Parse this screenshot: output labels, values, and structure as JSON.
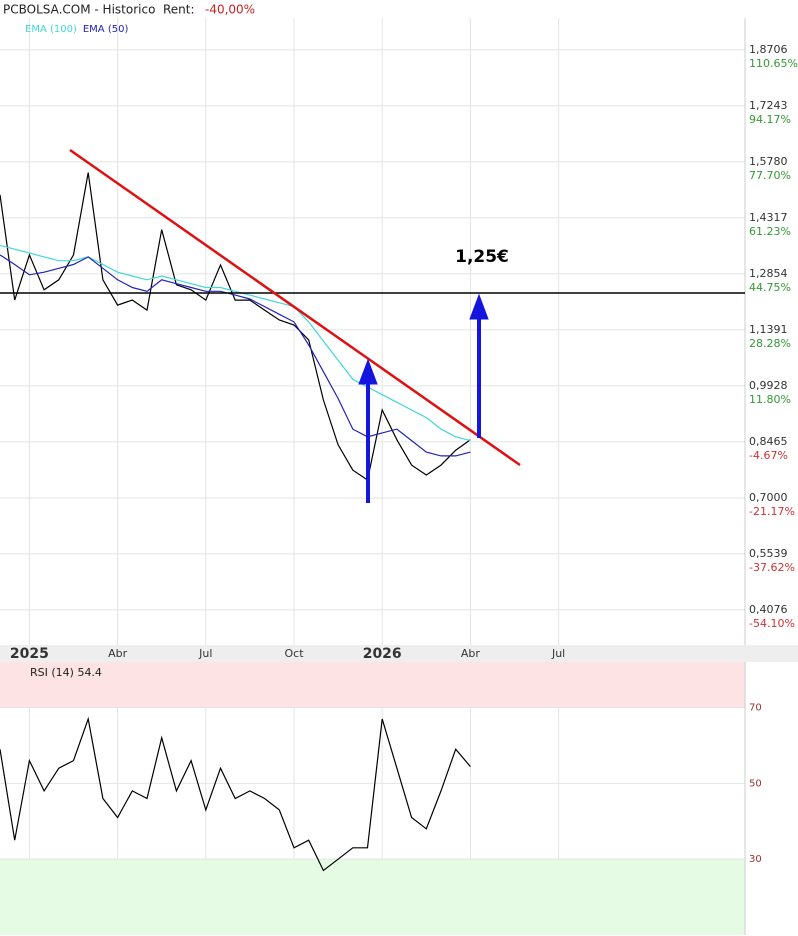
{
  "chart_data": [
    {
      "type": "line",
      "title": "PCBOLSA.COM - Historico",
      "rent_label": "Rent:",
      "rent_value": "-40,00%",
      "annotation": "1,25€",
      "categories": [
        null,
        null,
        "2025",
        null,
        null,
        null,
        null,
        null,
        "Abr",
        null,
        null,
        null,
        null,
        null,
        "Jul",
        null,
        null,
        null,
        null,
        null,
        "Oct",
        null,
        null,
        null,
        null,
        null,
        "2026",
        null,
        null,
        null,
        null,
        null,
        "Abr",
        null,
        null,
        null,
        null,
        null,
        "Jul",
        null,
        null,
        null,
        null,
        null,
        null,
        null,
        null,
        null,
        null,
        null,
        null
      ],
      "ylim": [
        0.316,
        1.954
      ],
      "yticks": [
        {
          "value": 1.8706,
          "label": "1,8706"
        },
        {
          "value": 1.7243,
          "label": "1,7243"
        },
        {
          "value": 1.578,
          "label": "1,5780"
        },
        {
          "value": 1.4317,
          "label": "1,4317"
        },
        {
          "value": 1.2854,
          "label": "1,2854"
        },
        {
          "value": 1.1391,
          "label": "1,1391"
        },
        {
          "value": 0.9928,
          "label": "0,9928"
        },
        {
          "value": 0.8465,
          "label": "0,8465"
        },
        {
          "value": 0.7,
          "label": "0,7000"
        },
        {
          "value": 0.5539,
          "label": "0,5539"
        },
        {
          "value": 0.4076,
          "label": "0,4076"
        }
      ],
      "ytick_pct_labels": [
        "110.65%",
        "94.17%",
        "77.70%",
        "61.23%",
        "44.75%",
        "28.28%",
        "11.80%",
        "-4.67%",
        "-21.17%",
        "-37.62%",
        "-54.10%"
      ],
      "grid": true,
      "series": [
        {
          "color": "#000000",
          "values": [
            1.492,
            1.217,
            1.335,
            1.244,
            1.27,
            1.335,
            1.55,
            1.27,
            1.204,
            1.217,
            1.191,
            1.401,
            1.257,
            1.244,
            1.217,
            1.309,
            1.217,
            1.217,
            1.191,
            1.165,
            1.152,
            1.113,
            0.956,
            0.839,
            0.773,
            0.747,
            0.93,
            0.852,
            0.786,
            0.76,
            0.786,
            0.825,
            0.852,
            null,
            null,
            null,
            null,
            null,
            null,
            null,
            null,
            null,
            null,
            null,
            null,
            null,
            null,
            null,
            null,
            null,
            null
          ]
        },
        {
          "name": "EMA (100)",
          "color": "#3fd8d8",
          "values": [
            1.36,
            1.35,
            1.34,
            1.33,
            1.32,
            1.32,
            1.33,
            1.31,
            1.29,
            1.28,
            1.27,
            1.28,
            1.27,
            1.26,
            1.25,
            1.25,
            1.24,
            1.23,
            1.22,
            1.21,
            1.2,
            1.16,
            1.11,
            1.06,
            1.01,
            0.99,
            0.97,
            0.95,
            0.93,
            0.91,
            0.88,
            0.86,
            0.85,
            null,
            null,
            null,
            null,
            null,
            null,
            null,
            null,
            null,
            null,
            null,
            null,
            null,
            null,
            null,
            null,
            null,
            null
          ]
        },
        {
          "name": "EMA (50)",
          "color": "#2222bb",
          "values": [
            1.335,
            1.31,
            1.283,
            1.29,
            1.3,
            1.31,
            1.33,
            1.3,
            1.27,
            1.25,
            1.24,
            1.27,
            1.26,
            1.25,
            1.24,
            1.24,
            1.23,
            1.22,
            1.2,
            1.18,
            1.16,
            1.1,
            1.03,
            0.96,
            0.88,
            0.86,
            0.87,
            0.88,
            0.85,
            0.82,
            0.81,
            0.81,
            0.82,
            null,
            null,
            null,
            null,
            null,
            null,
            null,
            null,
            null,
            null,
            null,
            null,
            null,
            null,
            null,
            null,
            null,
            null
          ]
        }
      ]
    },
    {
      "type": "line",
      "title": "RSI (14) 54.4",
      "ylim": [
        10,
        82
      ],
      "yticks": [
        30,
        50,
        70
      ],
      "upper_band_color": "#fde3e3",
      "lower_band_color": "#e6fbe3",
      "series": [
        {
          "color": "#000000",
          "values": [
            59,
            35,
            56,
            48,
            54,
            56,
            67,
            46,
            41,
            48,
            46,
            62,
            48,
            56,
            43,
            54,
            46,
            48,
            46,
            43,
            33,
            35,
            27,
            30,
            33,
            33,
            67,
            54,
            41,
            38,
            48,
            59,
            54.4,
            null,
            null,
            null,
            null,
            null,
            null,
            null,
            null,
            null,
            null,
            null,
            null,
            null,
            null,
            null,
            null,
            null,
            null
          ]
        }
      ]
    }
  ]
}
